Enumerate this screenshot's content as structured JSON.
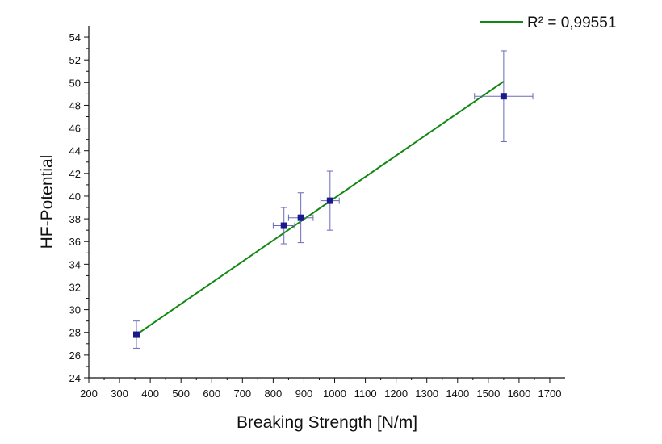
{
  "chart_data": {
    "type": "scatter",
    "xlabel": "Breaking Strength [N/m]",
    "ylabel": "HF-Potential",
    "xlim": [
      200,
      1750
    ],
    "ylim": [
      24,
      55
    ],
    "xticks": [
      200,
      300,
      400,
      500,
      600,
      700,
      800,
      900,
      1000,
      1100,
      1200,
      1300,
      1400,
      1500,
      1600,
      1700
    ],
    "yticks": [
      24,
      26,
      28,
      30,
      32,
      34,
      36,
      38,
      40,
      42,
      44,
      46,
      48,
      50,
      52,
      54
    ],
    "grid": false,
    "legend_position": "top-right",
    "series": [
      {
        "points": [
          {
            "x": 355,
            "y": 27.8,
            "xerr": 5,
            "yerr": 1.2
          },
          {
            "x": 835,
            "y": 37.4,
            "xerr": 35,
            "yerr": 1.6
          },
          {
            "x": 890,
            "y": 38.1,
            "xerr": 40,
            "yerr": 2.2
          },
          {
            "x": 985,
            "y": 39.6,
            "xerr": 30,
            "yerr": 2.6
          },
          {
            "x": 1550,
            "y": 48.8,
            "xerr": 95,
            "yerr": 4.0
          }
        ],
        "color": "#1a1a8c",
        "error_color": "#6a6ab8"
      }
    ],
    "fit": {
      "label": "R² = 0,99551",
      "color": "#118811",
      "x_start": 355,
      "y_start": 27.8,
      "x_end": 1550,
      "y_end": 50.1
    }
  }
}
